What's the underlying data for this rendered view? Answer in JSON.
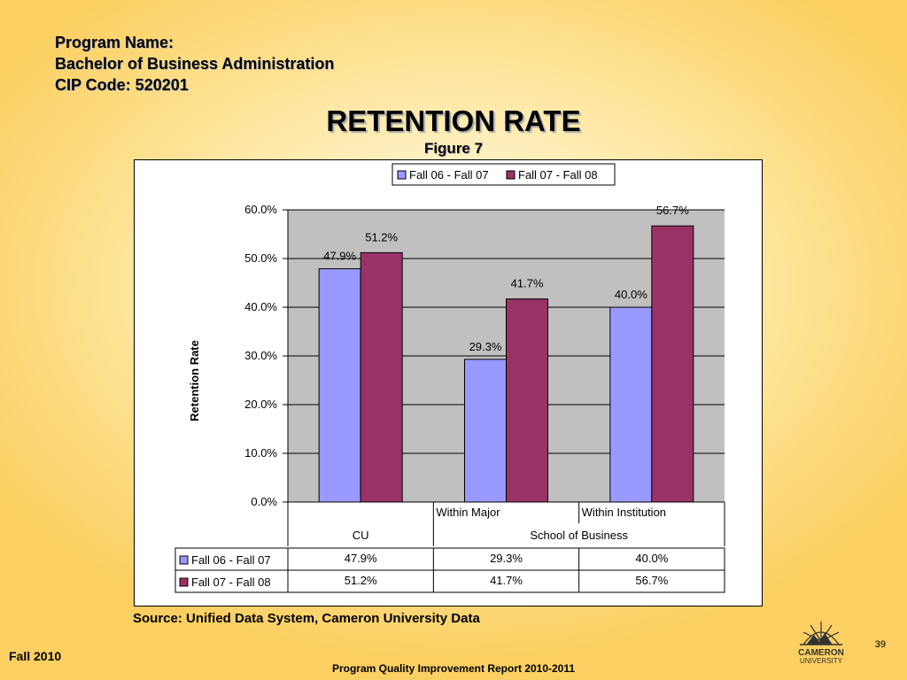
{
  "header": {
    "program_label": "Program Name:",
    "program_name": "Bachelor of Business Administration",
    "cip_code": "CIP Code: 520201"
  },
  "title": "RETENTION RATE",
  "subtitle": "Figure 7",
  "chart_data": {
    "type": "bar",
    "categories": [
      "CU",
      "Within Major",
      "Within Institution"
    ],
    "category_groups": [
      {
        "label": "CU",
        "categories": [
          "CU"
        ]
      },
      {
        "label": "School of Business",
        "categories": [
          "Within Major",
          "Within Institution"
        ]
      }
    ],
    "series": [
      {
        "name": "Fall 06 - Fall 07",
        "values": [
          47.9,
          29.3,
          40.0
        ],
        "labels": [
          "47.9%",
          "29.3%",
          "40.0%"
        ],
        "color": "#9999ff"
      },
      {
        "name": "Fall 07 - Fall 08",
        "values": [
          51.2,
          41.7,
          56.7
        ],
        "labels": [
          "51.2%",
          "41.7%",
          "56.7%"
        ],
        "color": "#993366"
      }
    ],
    "ylabel": "Retention Rate",
    "ylim": [
      0,
      60
    ],
    "yticks": [
      0,
      10,
      20,
      30,
      40,
      50,
      60
    ],
    "ytick_labels": [
      "0.0%",
      "10.0%",
      "20.0%",
      "30.0%",
      "40.0%",
      "50.0%",
      "60.0%"
    ],
    "grid": true,
    "plot_background": "#c0c0c0",
    "legend": "top",
    "data_table": true
  },
  "source": "Source: Unified Data System, Cameron University Data",
  "footer": {
    "term": "Fall 2010",
    "report": "Program Quality Improvement Report 2010-2011",
    "page_number": "39",
    "logo_line1": "CAMERON",
    "logo_line2": "UNIVERSITY"
  }
}
